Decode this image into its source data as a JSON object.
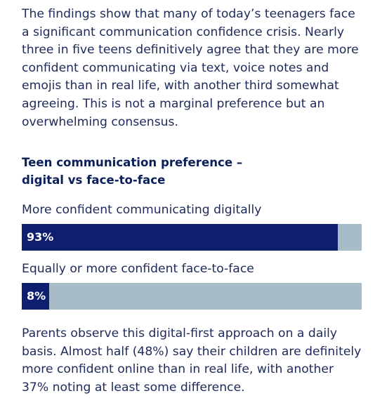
{
  "intro_paragraph": "The findings show that many of today’s teenagers face a significant communication confidence crisis. Nearly three in five teens definitively agree that they are more confident communicating via text, voice notes and emojis than in real life, with another third somewhat agreeing. This is not a marginal preference but an overwhelming consensus.",
  "chart_data": {
    "type": "bar",
    "title_line1": "Teen communication preference –",
    "title_line2": "digital vs face-to-face",
    "categories": [
      "More confident communicating digitally",
      "Equally or more confident face-to-face"
    ],
    "values": [
      93,
      8
    ],
    "value_labels": [
      "93%",
      "8%"
    ],
    "unit": "%",
    "xlim": [
      0,
      100
    ],
    "grid": false,
    "orientation": "horizontal",
    "colors": {
      "fill": "#0d1f6e",
      "track": "#a8bcc8"
    }
  },
  "closing_paragraph": "Parents observe this digital-first approach on a daily basis. Almost half (48%) say their children are definitely more confident online than in real life, with another 37% noting at least some difference."
}
